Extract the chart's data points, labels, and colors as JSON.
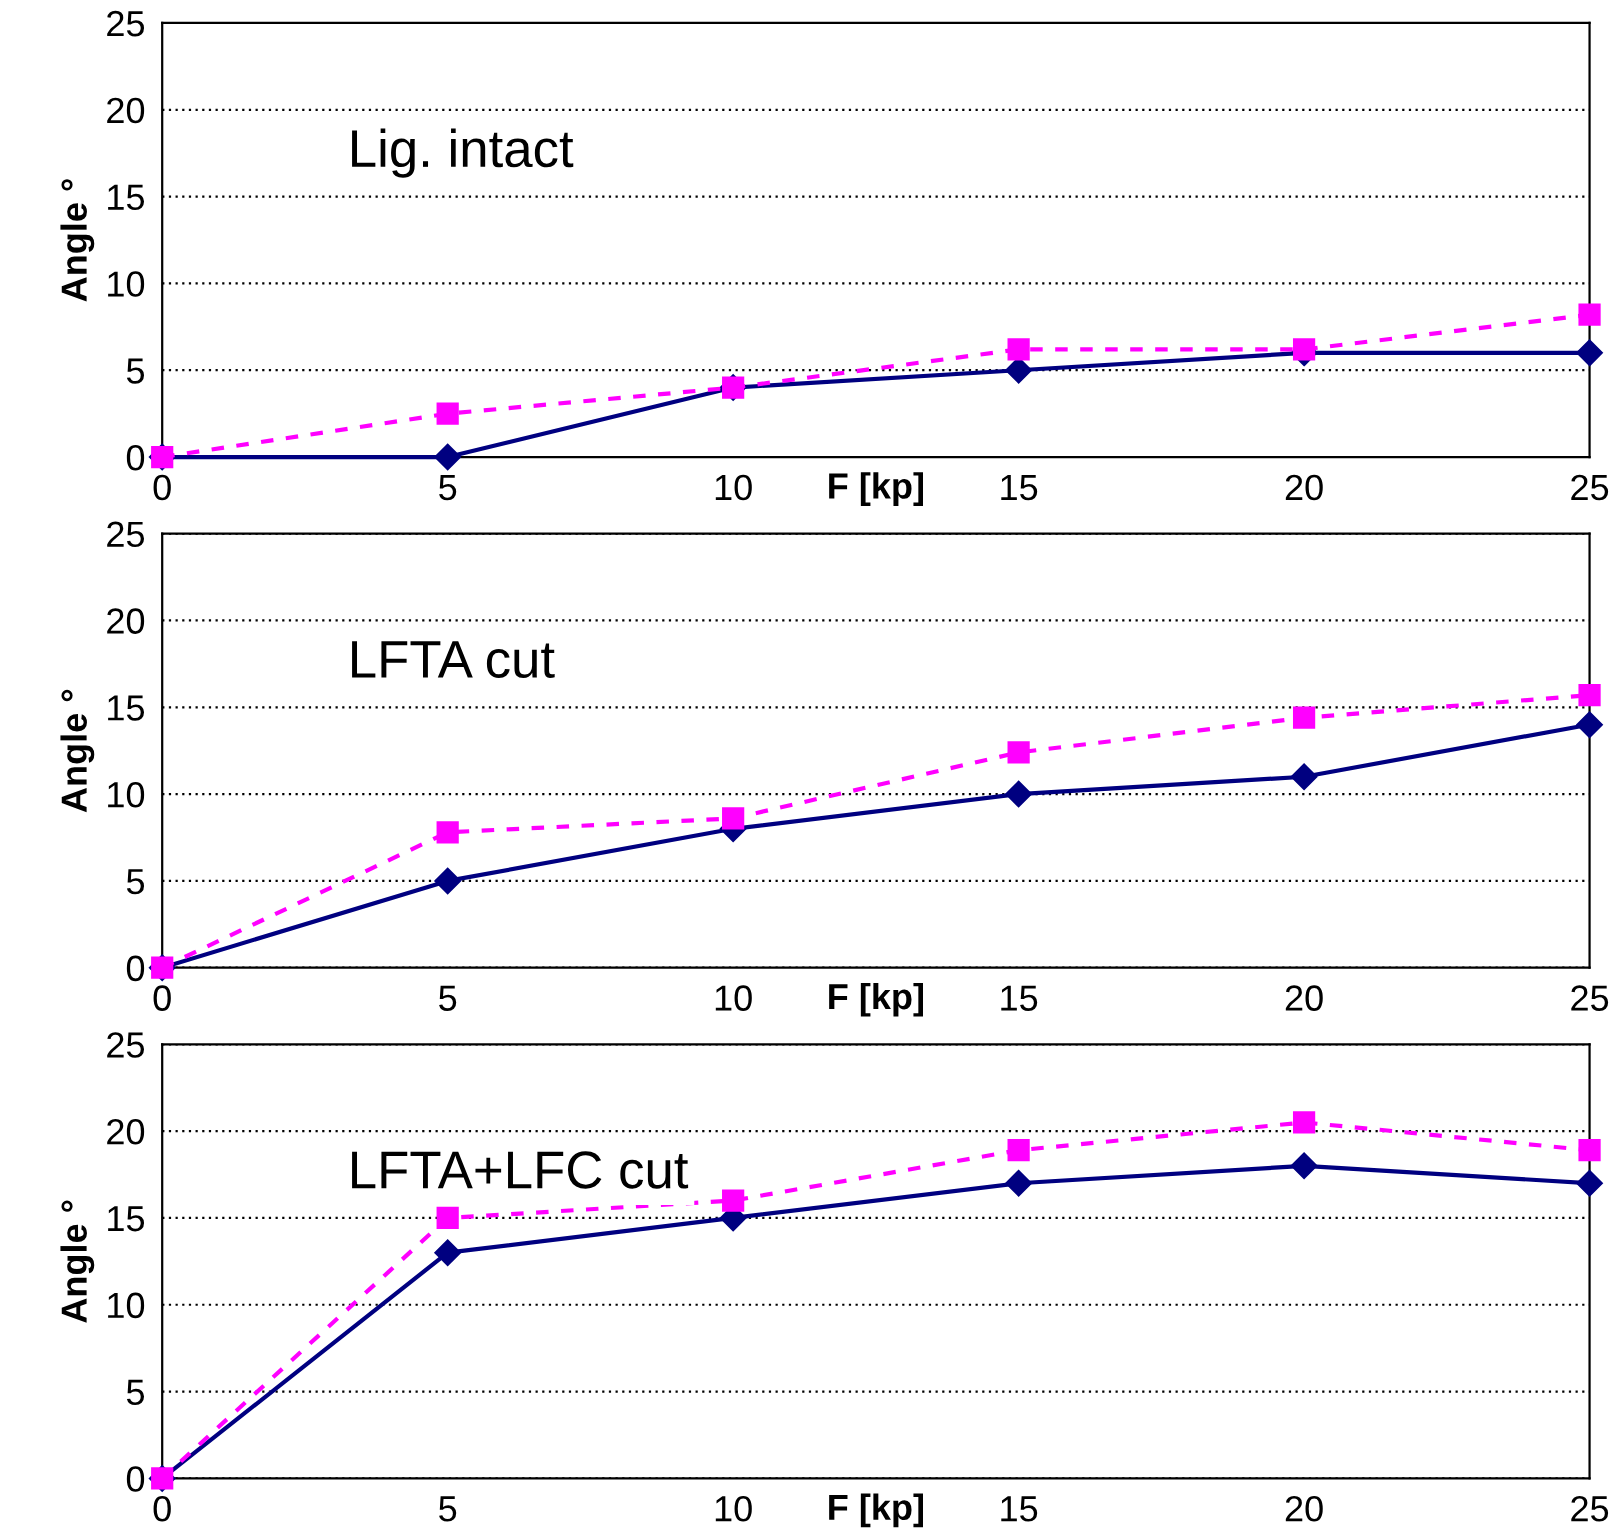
{
  "chart_data": [
    {
      "type": "line",
      "title": "Lig. intact",
      "xlabel": "F [kp]",
      "ylabel": "Angle °",
      "x": [
        0,
        5,
        10,
        15,
        20,
        25
      ],
      "xlim": [
        0,
        25
      ],
      "ylim": [
        0,
        25
      ],
      "xticks": [
        0,
        5,
        10,
        15,
        20,
        25
      ],
      "yticks": [
        0,
        5,
        10,
        15,
        20,
        25
      ],
      "grid": "y",
      "series": [
        {
          "color": "#000080",
          "marker": "diamond",
          "line_style": "solid",
          "values": [
            0,
            0,
            4,
            5,
            6,
            6
          ]
        },
        {
          "color": "#ff00ff",
          "marker": "square",
          "line_style": "dashed",
          "values": [
            0,
            2.5,
            4,
            6.2,
            6.2,
            8.2
          ]
        }
      ]
    },
    {
      "type": "line",
      "title": "LFTA cut",
      "xlabel": "F [kp]",
      "ylabel": "Angle °",
      "x": [
        0,
        5,
        10,
        15,
        20,
        25
      ],
      "xlim": [
        0,
        25
      ],
      "ylim": [
        0,
        25
      ],
      "xticks": [
        0,
        5,
        10,
        15,
        20,
        25
      ],
      "yticks": [
        0,
        5,
        10,
        15,
        20,
        25
      ],
      "grid": "y",
      "series": [
        {
          "color": "#000080",
          "marker": "diamond",
          "line_style": "solid",
          "values": [
            0,
            5,
            8,
            10,
            11,
            14
          ]
        },
        {
          "color": "#ff00ff",
          "marker": "square",
          "line_style": "dashed",
          "values": [
            0,
            7.8,
            8.6,
            12.4,
            14.4,
            15.7
          ]
        }
      ]
    },
    {
      "type": "line",
      "title": "LFTA+LFC cut",
      "xlabel": "F [kp]",
      "ylabel": "Angle °",
      "x": [
        0,
        5,
        10,
        15,
        20,
        25
      ],
      "xlim": [
        0,
        25
      ],
      "ylim": [
        0,
        25
      ],
      "xticks": [
        0,
        5,
        10,
        15,
        20,
        25
      ],
      "yticks": [
        0,
        5,
        10,
        15,
        20,
        25
      ],
      "grid": "y",
      "series": [
        {
          "color": "#000080",
          "marker": "diamond",
          "line_style": "solid",
          "values": [
            0,
            13,
            15,
            17,
            18,
            17
          ]
        },
        {
          "color": "#ff00ff",
          "marker": "square",
          "line_style": "dashed",
          "values": [
            0,
            15,
            16,
            18.9,
            20.5,
            18.9
          ]
        }
      ]
    }
  ]
}
